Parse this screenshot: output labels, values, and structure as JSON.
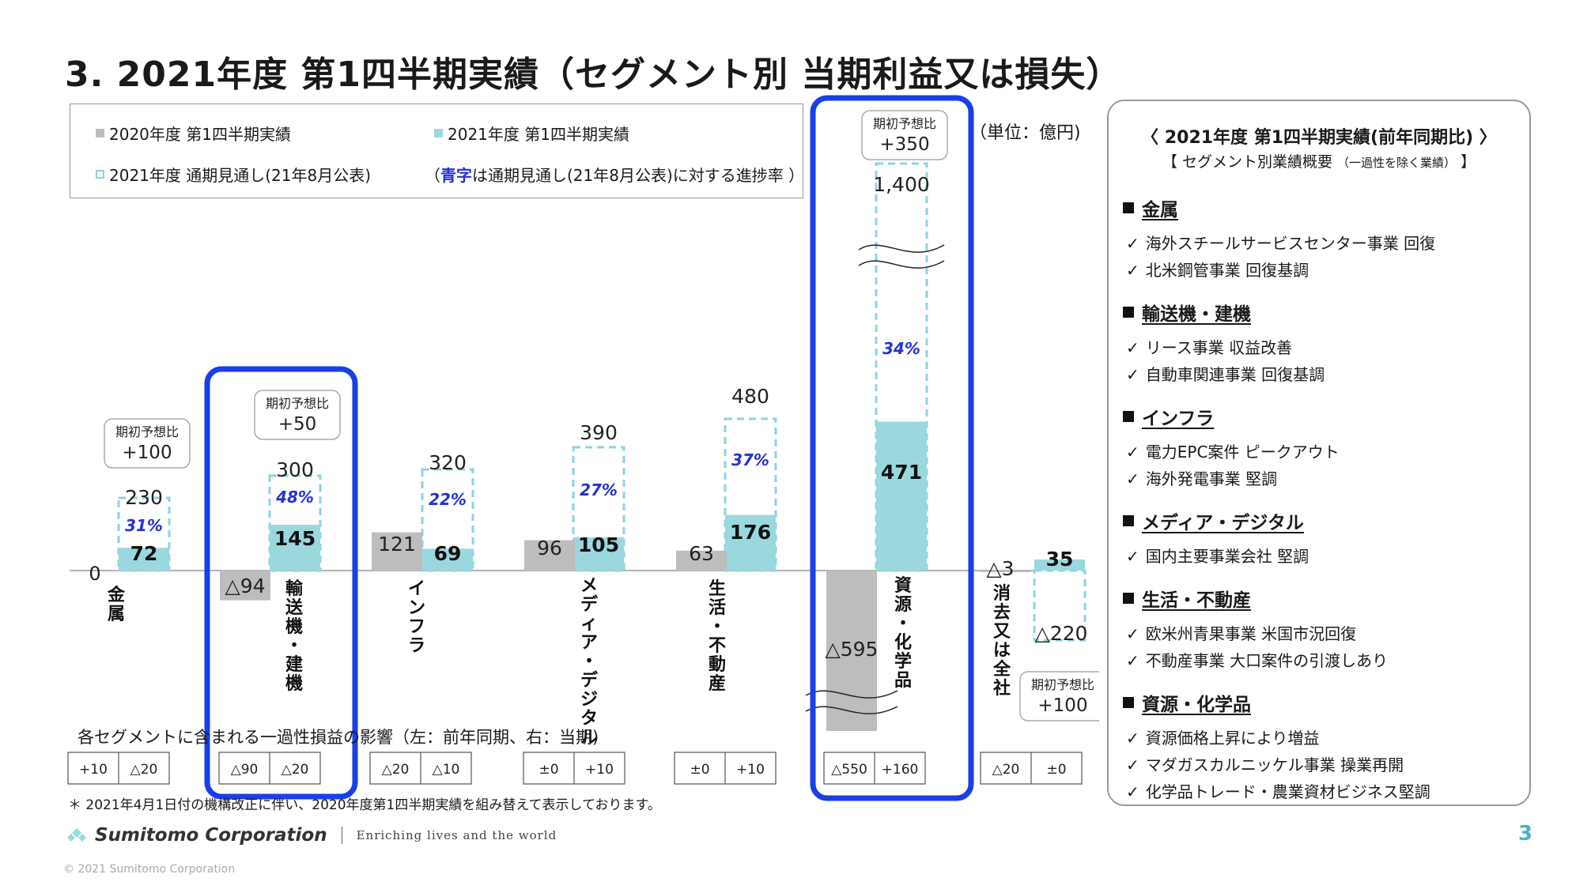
{
  "title": "3. 2021年度 第1四半期実績（セグメント別 当期利益又は損失）",
  "legend": {
    "prev": "2020年度 第1四半期実績",
    "curr": "2021年度 第1四半期実績",
    "forecast": "2021年度 通期見通し(21年8月公表)",
    "progress_open": "（",
    "progress_blue": "青字",
    "progress_rest": "は通期見通し(21年8月公表)に対する進捗率 ）"
  },
  "unit": "（単位：億円)",
  "colors": {
    "prev": "#bdbdbd",
    "curr": "#9ad8de",
    "forecast": "#8fd3dd",
    "highlight": "#1a3fe6",
    "progress": "#2431d6"
  },
  "chart_data": {
    "type": "bar",
    "zero_label": "0",
    "categories": [
      "金属",
      "輸送機・建機",
      "インフラ",
      "メディア・デジタル",
      "生活・不動産",
      "資源・化学品",
      "消去又は全社"
    ],
    "category_labels": [
      "金\n属",
      "輸\n送\n機\n・\n建\n機",
      "イ\nン\nフ\nラ",
      "メ\nデ\nィ\nア\n・\nデ\nジ\nタ\nル",
      "生\n活\n・\n不\n動\n産",
      "資\n源\n・\n化\n学\n品",
      "消\n去\n又\nは\n全\n社"
    ],
    "series": [
      {
        "name": "2020年度 第1四半期実績",
        "values": [
          null,
          -94,
          121,
          96,
          63,
          -595,
          -3
        ],
        "labels": [
          "",
          "△94",
          "121",
          "96",
          "63",
          "△595",
          "△3"
        ]
      },
      {
        "name": "2021年度 第1四半期実績",
        "values": [
          72,
          145,
          69,
          105,
          176,
          471,
          35
        ],
        "labels": [
          "72",
          "145",
          "69",
          "105",
          "176",
          "471",
          "35"
        ]
      },
      {
        "name": "2021年度 通期見通し(21年8月公表)",
        "values": [
          230,
          300,
          320,
          390,
          480,
          1400,
          -220
        ],
        "labels": [
          "230",
          "300",
          "320",
          "390",
          "480",
          "1,400",
          "△220"
        ]
      }
    ],
    "progress_rates": [
      "31%",
      "48%",
      "22%",
      "27%",
      "37%",
      "34%",
      ""
    ],
    "vs_initial": [
      {
        "label": "期初予想比",
        "value": "+100"
      },
      {
        "label": "期初予想比",
        "value": "+50"
      },
      null,
      null,
      null,
      {
        "label": "期初予想比",
        "value": "+350"
      },
      {
        "label": "期初予想比",
        "value": "+100"
      }
    ],
    "one_off": [
      [
        "+10",
        "△20"
      ],
      [
        "△90",
        "△20"
      ],
      [
        "△20",
        "△10"
      ],
      [
        "±0",
        "+10"
      ],
      [
        "±0",
        "+10"
      ],
      [
        "△550",
        "+160"
      ],
      [
        "△20",
        "±0"
      ]
    ],
    "highlighted_segments": [
      "輸送機・建機",
      "資源・化学品"
    ],
    "axis_break": "資源・化学品"
  },
  "one_off_caption": "各セグメントに含まれる一過性損益の影響（左：前年同期、右：当期)",
  "footnote": "＊ 2021年4月1日付の機構改正に伴い、2020年度第1四半期実績を組み替えて表示しております。",
  "brand": {
    "name": "Sumitomo Corporation",
    "tagline": "Enriching lives and the world",
    "logo_icon": "sumitomo-logo-icon"
  },
  "page_number": "3",
  "copyright": "© 2021 Sumitomo Corporation",
  "summary": {
    "title": "〈 2021年度 第1四半期実績(前年同期比) 〉",
    "subtitle_main": "【 セグメント別業績概要",
    "subtitle_small": "（一過性を除く業績）",
    "subtitle_end": "】",
    "sections": [
      {
        "name": "金属",
        "items": [
          "海外スチールサービスセンター事業 回復",
          "北米鋼管事業 回復基調"
        ]
      },
      {
        "name": "輸送機・建機",
        "items": [
          "リース事業 収益改善",
          "自動車関連事業 回復基調"
        ]
      },
      {
        "name": "インフラ",
        "items": [
          "電力EPC案件 ピークアウト",
          "海外発電事業 堅調"
        ]
      },
      {
        "name": "メディア・デジタル",
        "items": [
          "国内主要事業会社 堅調"
        ]
      },
      {
        "name": "生活・不動産",
        "items": [
          "欧米州青果事業 米国市況回復",
          "不動産事業 大口案件の引渡しあり"
        ]
      },
      {
        "name": "資源・化学品",
        "items": [
          "資源価格上昇により増益",
          "マダガスカルニッケル事業 操業再開",
          "化学品トレード・農業資材ビジネス堅調"
        ]
      }
    ]
  }
}
